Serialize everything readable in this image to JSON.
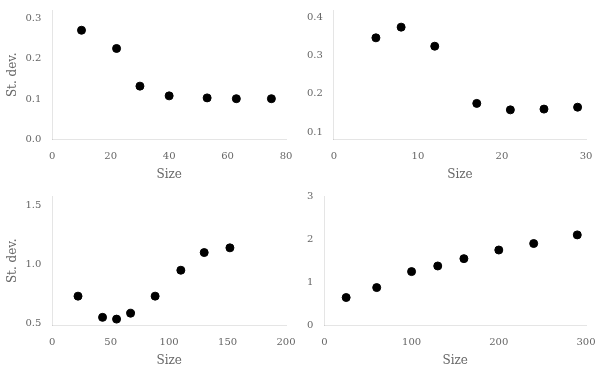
{
  "chart_data": [
    {
      "type": "scatter",
      "x": [
        10,
        22,
        30,
        40,
        53,
        63,
        75
      ],
      "values": [
        0.27,
        0.225,
        0.132,
        0.108,
        0.103,
        0.101,
        0.101
      ],
      "color": "#000000",
      "xlim": [
        0,
        80
      ],
      "ylim": [
        0,
        0.32
      ],
      "xticks": [
        0,
        20,
        40,
        60,
        80
      ],
      "yticks": [
        {
          "value": 0,
          "label": "0.0"
        },
        0.1,
        0.2,
        0.3
      ],
      "xlabel": "Size",
      "ylabel": "St. dev.",
      "grid": false
    },
    {
      "type": "scatter",
      "x": [
        5,
        8,
        12,
        17,
        21,
        25,
        29
      ],
      "values": [
        0.347,
        0.375,
        0.325,
        0.175,
        0.158,
        0.16,
        0.165
      ],
      "color": "#000000",
      "xlim": [
        0,
        30
      ],
      "ylim": [
        0.08,
        0.42
      ],
      "xticks": [
        0,
        10,
        20,
        30
      ],
      "yticks": [
        0.1,
        0.2,
        0.3,
        0.4
      ],
      "xlabel": "Size",
      "grid": false
    },
    {
      "type": "scatter",
      "x": [
        22,
        43,
        55,
        67,
        88,
        110,
        130,
        152
      ],
      "values": [
        0.73,
        0.55,
        0.535,
        0.585,
        0.73,
        0.95,
        1.1,
        1.14
      ],
      "color": "#000000",
      "xlim": [
        0,
        200
      ],
      "ylim": [
        0.48,
        1.58
      ],
      "xticks": [
        0,
        50,
        100,
        150,
        200
      ],
      "yticks": [
        0.5,
        {
          "value": 1.0,
          "label": "1.0"
        },
        1.5
      ],
      "xlabel": "Size",
      "ylabel": "St. dev.",
      "grid": false
    },
    {
      "type": "scatter",
      "x": [
        25,
        60,
        100,
        130,
        160,
        200,
        240,
        290
      ],
      "values": [
        0.65,
        0.88,
        1.25,
        1.38,
        1.55,
        1.75,
        1.9,
        2.1
      ],
      "color": "#000000",
      "xlim": [
        0,
        300
      ],
      "ylim": [
        0,
        3.0
      ],
      "xticks": [
        0,
        100,
        200,
        300
      ],
      "yticks": [
        0,
        1,
        2,
        3
      ],
      "xlabel": "Size",
      "grid": false
    }
  ]
}
